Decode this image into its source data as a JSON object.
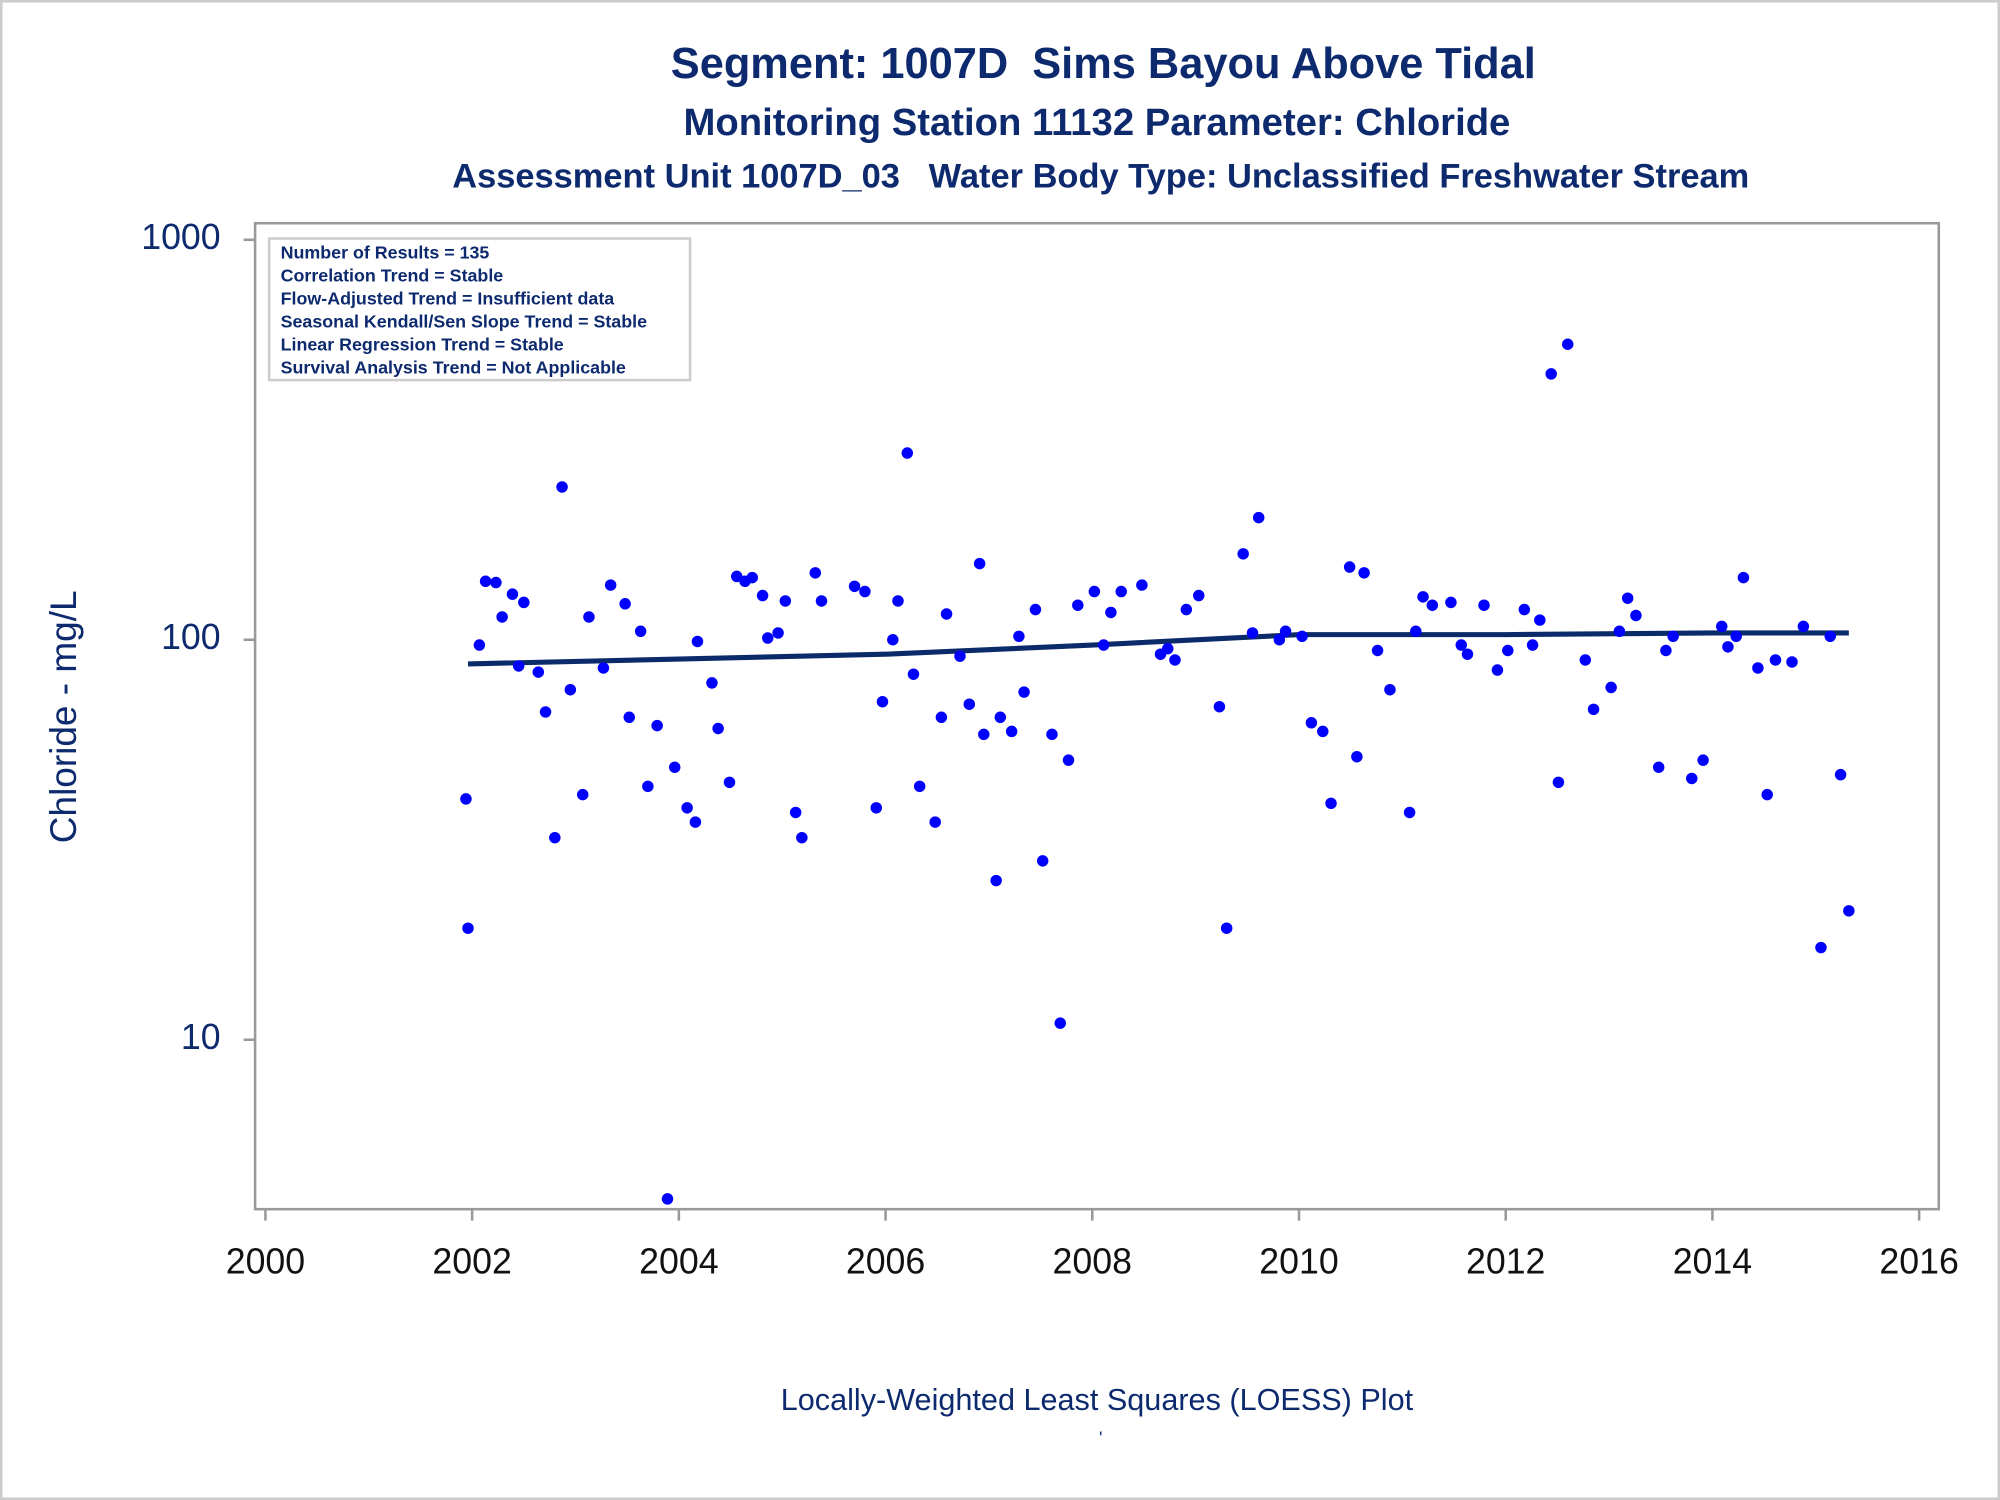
{
  "chart_data": {
    "type": "scatter",
    "title": "Segment: 1007D  Sims Bayou Above Tidal",
    "subtitles": [
      "Monitoring Station 11132 Parameter: Chloride",
      "Assessment Unit 1007D_03   Water Body Type: Unclassified Freshwater Stream"
    ],
    "ylabel": "Chloride - mg/L",
    "footnote": "Locally-Weighted Least Squares (LOESS) Plot",
    "footnote2": "'",
    "annotations": [
      "Number of Results = 135",
      "Correlation Trend = Stable",
      "Flow-Adjusted Trend = Insufficient data",
      "Seasonal Kendall/Sen Slope Trend = Stable",
      "Linear Regression Trend = Stable",
      "Survival Analysis Trend = Not Applicable"
    ],
    "yscale": "log",
    "xlim": [
      1999.9,
      2016.19
    ],
    "ylim": [
      3.77,
      1100
    ],
    "xticks": [
      2000,
      2002,
      2004,
      2006,
      2008,
      2010,
      2012,
      2014,
      2016
    ],
    "yticks": [
      10,
      100,
      1000
    ],
    "color": "#0000ff",
    "x": [
      2001.94,
      2001.96,
      2002.07,
      2002.13,
      2002.23,
      2002.29,
      2002.39,
      2002.45,
      2002.5,
      2002.64,
      2002.71,
      2002.8,
      2002.87,
      2002.95,
      2003.07,
      2003.13,
      2003.27,
      2003.34,
      2003.48,
      2003.52,
      2003.63,
      2003.7,
      2003.79,
      2003.89,
      2003.96,
      2004.08,
      2004.16,
      2004.18,
      2004.32,
      2004.38,
      2004.49,
      2004.56,
      2004.64,
      2004.71,
      2004.81,
      2004.86,
      2004.96,
      2005.03,
      2005.13,
      2005.19,
      2005.32,
      2005.38,
      2005.7,
      2005.8,
      2005.91,
      2005.97,
      2006.07,
      2006.12,
      2006.21,
      2006.27,
      2006.33,
      2006.48,
      2006.54,
      2006.59,
      2006.72,
      2006.81,
      2006.91,
      2006.95,
      2007.07,
      2007.11,
      2007.22,
      2007.29,
      2007.34,
      2007.45,
      2007.52,
      2007.61,
      2007.69,
      2007.77,
      2007.86,
      2008.02,
      2008.11,
      2008.18,
      2008.28,
      2008.48,
      2008.66,
      2008.73,
      2008.8,
      2008.91,
      2009.03,
      2009.23,
      2009.3,
      2009.46,
      2009.55,
      2009.61,
      2009.81,
      2009.87,
      2010.03,
      2010.12,
      2010.23,
      2010.31,
      2010.49,
      2010.56,
      2010.63,
      2010.76,
      2010.88,
      2011.07,
      2011.13,
      2011.2,
      2011.29,
      2011.47,
      2011.57,
      2011.63,
      2011.79,
      2011.92,
      2012.02,
      2012.18,
      2012.26,
      2012.33,
      2012.44,
      2012.51,
      2012.6,
      2012.77,
      2012.85,
      2013.02,
      2013.1,
      2013.18,
      2013.26,
      2013.48,
      2013.55,
      2013.62,
      2013.8,
      2013.91,
      2014.09,
      2014.15,
      2014.23,
      2014.3,
      2014.44,
      2014.53,
      2014.61,
      2014.77,
      2014.88,
      2015.05,
      2015.14,
      2015.24,
      2015.32
    ],
    "values": [
      40,
      19,
      97,
      140,
      139,
      114,
      130,
      86,
      124,
      83,
      66,
      32,
      241,
      75,
      41,
      114,
      85,
      137,
      123,
      64,
      105,
      43,
      61,
      4,
      48,
      38,
      35,
      99,
      78,
      60,
      44,
      144,
      140,
      143,
      129,
      101,
      104,
      125,
      37,
      32,
      147,
      125,
      136,
      132,
      38,
      70,
      100,
      125,
      293,
      82,
      43,
      35,
      64,
      116,
      91,
      69,
      155,
      58,
      25,
      64,
      59,
      102,
      74,
      119,
      28,
      58,
      11,
      50,
      122,
      132,
      97,
      117,
      132,
      137,
      92,
      95,
      89,
      119,
      129,
      68,
      19,
      164,
      104,
      202,
      100,
      105,
      102,
      62,
      59,
      39,
      152,
      51,
      147,
      94,
      75,
      37,
      105,
      128,
      122,
      124,
      97,
      92,
      122,
      84,
      94,
      119,
      97,
      112,
      462,
      44,
      548,
      89,
      67,
      76,
      105,
      127,
      115,
      48,
      94,
      102,
      45,
      50,
      108,
      96,
      102,
      143,
      85,
      41,
      89,
      88,
      108,
      17,
      102,
      46,
      21
    ],
    "trend": {
      "color": "#0a2a6a",
      "x": [
        2001.96,
        2004,
        2006,
        2008,
        2010,
        2012,
        2014,
        2015.32
      ],
      "values": [
        87,
        89.5,
        92,
        97,
        103,
        103,
        104,
        104
      ]
    }
  }
}
